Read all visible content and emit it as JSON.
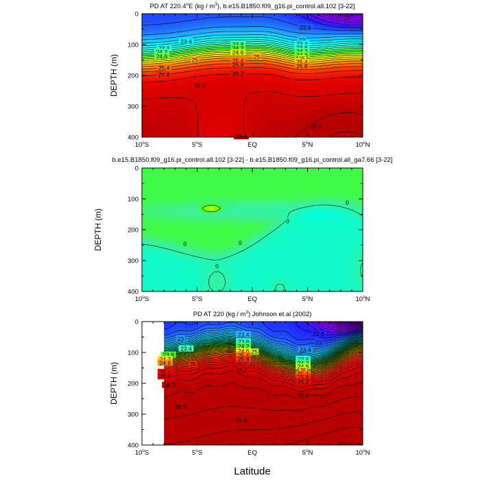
{
  "chart_data": [
    {
      "type": "contour",
      "title_prefix": "PD AT 220.4",
      "title_degree": "o",
      "title_mid": "E (kg / m",
      "title_exp": "3",
      "title_suffix": "), b.e15.B1850.f09_g16.pi_control.all.102 [3-22]",
      "ylabel": "DEPTH (m)",
      "xlabel": "",
      "xlim": [
        -10,
        10
      ],
      "ylim": [
        400,
        0
      ],
      "y_ticks": [
        "0",
        "100",
        "200",
        "300",
        "400"
      ],
      "x_ticks": [
        {
          "num": "10",
          "deg": "o",
          "hemi": "S"
        },
        {
          "num": "5",
          "deg": "o",
          "hemi": "S"
        },
        {
          "num": "EQ",
          "deg": "",
          "hemi": ""
        },
        {
          "num": "5",
          "deg": "o",
          "hemi": "N"
        },
        {
          "num": "10",
          "deg": "o",
          "hemi": "N"
        }
      ],
      "contour_interval": 0.2,
      "data_xmin": -10,
      "contour_labels": [
        {
          "text": "23.4",
          "x": -6,
          "y": 90
        },
        {
          "text": "23.8",
          "x": -8,
          "y": 112
        },
        {
          "text": "24.2",
          "x": -8.2,
          "y": 124
        },
        {
          "text": "24.6",
          "x": -8.2,
          "y": 138
        },
        {
          "text": "25",
          "x": -5.2,
          "y": 150
        },
        {
          "text": "25.4",
          "x": -8,
          "y": 175
        },
        {
          "text": "25.8",
          "x": -8,
          "y": 198
        },
        {
          "text": "26.2",
          "x": -4.8,
          "y": 233
        },
        {
          "text": "23.8",
          "x": -1.3,
          "y": 100
        },
        {
          "text": "24.2",
          "x": -1.3,
          "y": 112
        },
        {
          "text": "24.6",
          "x": -1.3,
          "y": 126
        },
        {
          "text": "25",
          "x": 0.4,
          "y": 140
        },
        {
          "text": "25.4",
          "x": -1.3,
          "y": 152
        },
        {
          "text": "25.8",
          "x": -1.3,
          "y": 166
        },
        {
          "text": "26.2",
          "x": -1.3,
          "y": 194
        },
        {
          "text": "22.6",
          "x": 4.8,
          "y": 44
        },
        {
          "text": "23",
          "x": 4.5,
          "y": 85
        },
        {
          "text": "23.4",
          "x": 4.5,
          "y": 98
        },
        {
          "text": "23.8",
          "x": 4.5,
          "y": 110
        },
        {
          "text": "24.2",
          "x": 4.5,
          "y": 122
        },
        {
          "text": "24.6",
          "x": 4.5,
          "y": 134
        },
        {
          "text": "25",
          "x": 4.5,
          "y": 145
        },
        {
          "text": "25.4",
          "x": 4.5,
          "y": 157
        },
        {
          "text": "25.8",
          "x": 4.5,
          "y": 170
        },
        {
          "text": "26.6",
          "x": 5.8,
          "y": 363
        },
        {
          "text": "26.6",
          "x": -1,
          "y": 398
        }
      ]
    },
    {
      "type": "contour",
      "title": "b.e15.B1850.f09_g16.pi_control.all.102 [3-22] - b.e15.B1850.f09_g16.pi_control.all_ga7.66 [3-22]",
      "ylabel": "DEPTH (m)",
      "xlabel": "",
      "xlim": [
        -10,
        10
      ],
      "ylim": [
        400,
        0
      ],
      "y_ticks": [
        "0",
        "100",
        "200",
        "300",
        "400"
      ],
      "x_ticks": [
        {
          "num": "10",
          "deg": "o",
          "hemi": "S"
        },
        {
          "num": "5",
          "deg": "o",
          "hemi": "S"
        },
        {
          "num": "EQ",
          "deg": "",
          "hemi": ""
        },
        {
          "num": "5",
          "deg": "o",
          "hemi": "N"
        },
        {
          "num": "10",
          "deg": "o",
          "hemi": "N"
        }
      ],
      "contour_interval": 0.2,
      "data_xmin": -10,
      "contour_labels": [
        {
          "text": "0",
          "x": 8.6,
          "y": 112
        },
        {
          "text": "0",
          "x": 3.2,
          "y": 172
        },
        {
          "text": "0",
          "x": -6.1,
          "y": 245
        },
        {
          "text": "0",
          "x": -1.1,
          "y": 242
        },
        {
          "text": "0",
          "x": -3.2,
          "y": 318
        }
      ]
    },
    {
      "type": "contour",
      "title_prefix": "PD AT 220 (kg / m",
      "title_exp": "3",
      "title_suffix": ") Johnson et al (2002)",
      "ylabel": "DEPTH (m)",
      "xlabel": "Latitude",
      "xlim": [
        -10,
        10
      ],
      "ylim": [
        400,
        0
      ],
      "y_ticks": [
        "0",
        "100",
        "200",
        "300",
        "400"
      ],
      "x_ticks": [
        {
          "num": "10",
          "deg": "o",
          "hemi": "S"
        },
        {
          "num": "5",
          "deg": "o",
          "hemi": "S"
        },
        {
          "num": "EQ",
          "deg": "",
          "hemi": ""
        },
        {
          "num": "5",
          "deg": "o",
          "hemi": "N"
        },
        {
          "num": "10",
          "deg": "o",
          "hemi": "N"
        }
      ],
      "contour_interval": 0.1,
      "data_xmin": -8,
      "contour_labels": [
        {
          "text": "23",
          "x": -6.5,
          "y": 55
        },
        {
          "text": "23.4",
          "x": -6,
          "y": 88
        },
        {
          "text": "23.4",
          "x": -0.8,
          "y": 42
        },
        {
          "text": "23.8",
          "x": -0.8,
          "y": 65
        },
        {
          "text": "24.2",
          "x": -0.8,
          "y": 80
        },
        {
          "text": "24.6",
          "x": -0.8,
          "y": 96
        },
        {
          "text": "25",
          "x": 0.2,
          "y": 98
        },
        {
          "text": "25.4",
          "x": -0.8,
          "y": 110
        },
        {
          "text": "25.8",
          "x": -0.8,
          "y": 122
        },
        {
          "text": "26.2",
          "x": -1,
          "y": 157
        },
        {
          "text": "23.8",
          "x": -7.6,
          "y": 108
        },
        {
          "text": "24.2",
          "x": -7.9,
          "y": 122
        },
        {
          "text": "24.6",
          "x": -7.9,
          "y": 134
        },
        {
          "text": "25",
          "x": -5.4,
          "y": 138
        },
        {
          "text": "25.4",
          "x": -7.9,
          "y": 164
        },
        {
          "text": "25.8",
          "x": -7.9,
          "y": 178
        },
        {
          "text": "26.2",
          "x": -7.5,
          "y": 206
        },
        {
          "text": "22.6",
          "x": 6,
          "y": 40
        },
        {
          "text": "23",
          "x": 6,
          "y": 68
        },
        {
          "text": "23.4",
          "x": 4.8,
          "y": 92
        },
        {
          "text": "23.8",
          "x": 4.6,
          "y": 122
        },
        {
          "text": "24.2",
          "x": 4.6,
          "y": 134
        },
        {
          "text": "24.6",
          "x": 4.6,
          "y": 146
        },
        {
          "text": "25",
          "x": 4.6,
          "y": 158
        },
        {
          "text": "25.4",
          "x": 4.6,
          "y": 170
        },
        {
          "text": "25.8",
          "x": 4.6,
          "y": 180
        },
        {
          "text": "26.2",
          "x": 4.6,
          "y": 194
        },
        {
          "text": "26.6",
          "x": 4.6,
          "y": 240
        },
        {
          "text": "26.6",
          "x": -6.5,
          "y": 275
        },
        {
          "text": "26.8",
          "x": -1,
          "y": 320
        }
      ]
    }
  ]
}
